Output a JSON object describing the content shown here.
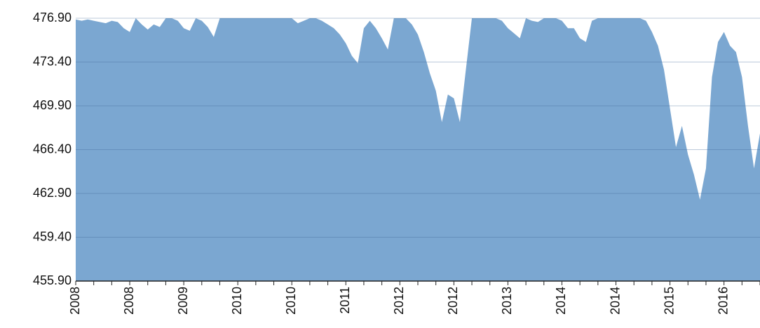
{
  "chart_data": {
    "type": "area",
    "color": "#7ba7d1",
    "grid": true,
    "ylim": [
      455.9,
      476.9
    ],
    "yticks": [
      {
        "value": 455.9,
        "label": "455.90"
      },
      {
        "value": 459.4,
        "label": "459.40"
      },
      {
        "value": 462.9,
        "label": "462.90"
      },
      {
        "value": 466.4,
        "label": "466.40"
      },
      {
        "value": 469.9,
        "label": "469.90"
      },
      {
        "value": 473.4,
        "label": "473.40"
      },
      {
        "value": 476.9,
        "label": "476.90"
      }
    ],
    "categories": [
      "2008",
      null,
      null,
      null,
      null,
      null,
      null,
      null,
      null,
      "2008",
      null,
      null,
      null,
      null,
      null,
      null,
      null,
      null,
      "2009",
      null,
      null,
      null,
      null,
      null,
      null,
      null,
      null,
      "2010",
      null,
      null,
      null,
      null,
      null,
      null,
      null,
      null,
      "2010",
      null,
      null,
      null,
      null,
      null,
      null,
      null,
      null,
      "2011",
      null,
      null,
      null,
      null,
      null,
      null,
      null,
      null,
      "2012",
      null,
      null,
      null,
      null,
      null,
      null,
      null,
      null,
      "2012",
      null,
      null,
      null,
      null,
      null,
      null,
      null,
      null,
      "2013",
      null,
      null,
      null,
      null,
      null,
      null,
      null,
      null,
      "2014",
      null,
      null,
      null,
      null,
      null,
      null,
      null,
      null,
      "2014",
      null,
      null,
      null,
      null,
      null,
      null,
      null,
      null,
      "2015",
      null,
      null,
      null,
      null,
      null,
      null,
      null,
      null,
      "2016",
      null,
      null,
      null,
      null,
      null,
      null
    ],
    "values": [
      476.8,
      476.7,
      476.8,
      476.7,
      476.6,
      476.5,
      476.7,
      476.6,
      476.1,
      475.8,
      476.9,
      476.4,
      476.0,
      476.4,
      476.2,
      476.9,
      476.9,
      476.7,
      476.1,
      475.9,
      476.9,
      476.7,
      476.2,
      475.4,
      476.9,
      476.9,
      476.9,
      476.9,
      476.9,
      476.9,
      476.9,
      476.9,
      476.9,
      476.9,
      476.9,
      476.9,
      476.9,
      476.5,
      476.7,
      476.9,
      476.9,
      476.7,
      476.4,
      476.1,
      475.6,
      474.9,
      473.9,
      473.3,
      476.1,
      476.7,
      476.1,
      475.3,
      474.4,
      476.9,
      476.9,
      476.9,
      476.4,
      475.6,
      474.2,
      472.5,
      471.1,
      468.6,
      470.8,
      470.5,
      468.6,
      472.8,
      476.9,
      476.9,
      476.9,
      476.9,
      476.9,
      476.7,
      476.1,
      475.7,
      475.3,
      476.9,
      476.7,
      476.6,
      476.9,
      476.9,
      476.9,
      476.7,
      476.1,
      476.1,
      475.3,
      475.0,
      476.7,
      476.9,
      476.9,
      476.9,
      476.9,
      476.9,
      476.9,
      476.9,
      476.9,
      476.7,
      475.8,
      474.7,
      472.8,
      469.7,
      466.6,
      468.3,
      466.0,
      464.4,
      462.4,
      464.9,
      472.2,
      475.0,
      475.8,
      474.7,
      474.2,
      472.2,
      468.3,
      464.9,
      467.7
    ]
  }
}
